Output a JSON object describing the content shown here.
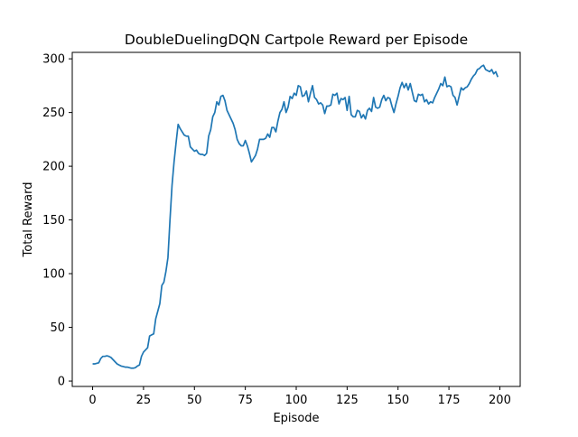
{
  "chart_data": {
    "type": "line",
    "title": "DoubleDuelingDQN Cartpole Reward per Episode",
    "xlabel": "Episode",
    "ylabel": "Total Reward",
    "xlim": [
      -10,
      210
    ],
    "ylim": [
      -5,
      306
    ],
    "xticks": [
      0,
      25,
      50,
      75,
      100,
      125,
      150,
      175,
      200
    ],
    "yticks": [
      0,
      50,
      100,
      150,
      200,
      250,
      300
    ],
    "grid": false,
    "legend": "none",
    "line_color": "#1f77b4",
    "series": [
      {
        "x": [
          0,
          1,
          2,
          3,
          4,
          5,
          6,
          7,
          8,
          9,
          10,
          11,
          12,
          13,
          14,
          15,
          16,
          17,
          18,
          19,
          20,
          21,
          22,
          23,
          24,
          25,
          26,
          27,
          28,
          29,
          30,
          31,
          32,
          33,
          34,
          35,
          36,
          37,
          38,
          39,
          40,
          41,
          42,
          43,
          44,
          45,
          46,
          47,
          48,
          49,
          50,
          51,
          52,
          53,
          54,
          55,
          56,
          57,
          58,
          59,
          60,
          61,
          62,
          63,
          64,
          65,
          66,
          67,
          68,
          69,
          70,
          71,
          72,
          73,
          74,
          75,
          76,
          77,
          78,
          79,
          80,
          81,
          82,
          83,
          84,
          85,
          86,
          87,
          88,
          89,
          90,
          91,
          92,
          93,
          94,
          95,
          96,
          97,
          98,
          99,
          100,
          101,
          102,
          103,
          104,
          105,
          106,
          107,
          108,
          109,
          110,
          111,
          112,
          113,
          114,
          115,
          116,
          117,
          118,
          119,
          120,
          121,
          122,
          123,
          124,
          125,
          126,
          127,
          128,
          129,
          130,
          131,
          132,
          133,
          134,
          135,
          136,
          137,
          138,
          139,
          140,
          141,
          142,
          143,
          144,
          145,
          146,
          147,
          148,
          149,
          150,
          151,
          152,
          153,
          154,
          155,
          156,
          157,
          158,
          159,
          160,
          161,
          162,
          163,
          164,
          165,
          166,
          167,
          168,
          169,
          170,
          171,
          172,
          173,
          174,
          175,
          176,
          177,
          178,
          179,
          180,
          181,
          182,
          183,
          184,
          185,
          186,
          187,
          188,
          189,
          190,
          191,
          192,
          193,
          194,
          195,
          196,
          197,
          198,
          199
        ],
        "values": [
          16,
          16,
          16.5,
          17,
          21,
          23,
          23,
          23.5,
          23,
          22,
          20,
          18,
          16,
          15,
          14,
          13.5,
          13,
          13,
          12.5,
          12,
          12,
          12.5,
          14,
          15,
          23,
          27,
          29,
          31,
          42,
          43,
          44,
          58,
          65,
          72,
          89,
          92,
          102,
          115,
          150,
          182,
          204,
          222,
          239,
          235,
          232,
          229,
          228,
          228,
          218,
          216,
          214,
          215,
          212,
          211,
          211,
          210,
          212,
          228,
          234,
          246,
          250,
          260,
          257,
          265,
          266,
          261,
          252,
          248,
          244,
          240,
          234,
          225,
          221,
          219,
          219,
          224,
          219,
          212,
          204,
          207,
          210,
          216,
          225,
          225,
          225,
          226,
          230,
          227,
          236,
          236,
          232,
          242,
          250,
          253,
          260,
          250,
          255,
          265,
          263,
          268,
          266,
          275,
          274,
          265,
          266,
          270,
          260,
          268,
          275,
          264,
          262,
          258,
          259,
          257,
          249,
          256,
          256,
          257,
          267,
          266,
          268,
          258,
          263,
          262,
          264,
          252,
          265,
          248,
          246,
          246,
          252,
          251,
          245,
          248,
          244,
          252,
          254,
          251,
          264,
          255,
          254,
          255,
          262,
          266,
          261,
          264,
          263,
          256,
          250,
          258,
          265,
          273,
          278,
          273,
          277,
          271,
          277,
          269,
          261,
          260,
          267,
          266,
          267,
          260,
          262,
          258,
          260,
          259,
          264,
          268,
          272,
          277,
          275,
          283,
          274,
          275,
          274,
          266,
          264,
          257,
          265,
          273,
          271,
          273,
          274,
          277,
          281,
          284,
          286,
          290,
          291,
          293,
          294,
          290,
          289,
          288,
          290,
          286,
          288,
          283
        ]
      }
    ]
  }
}
